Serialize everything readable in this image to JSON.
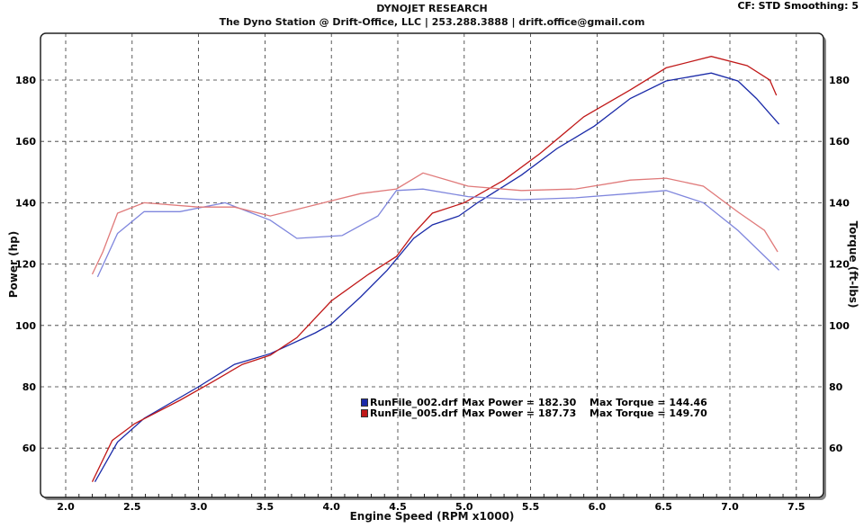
{
  "header": {
    "title": "DYNOJET RESEARCH",
    "subtitle": "The Dyno Station @ Drift-Office, LLC | 253.288.3888 | drift.office@gmail.com",
    "cf": "CF: STD  Smoothing: 5"
  },
  "chart_data": {
    "type": "line",
    "xlabel": "Engine Speed (RPM x1000)",
    "ylabel": "Power (hp)",
    "ylabel_right": "Torque (ft-lbs)",
    "xlim": [
      1.81,
      7.69
    ],
    "ylim": [
      47.7,
      195
    ],
    "xticks": [
      "2.0",
      "2.5",
      "3.0",
      "3.5",
      "4.0",
      "4.5",
      "5.0",
      "5.5",
      "6.0",
      "6.5",
      "7.0",
      "7.5"
    ],
    "yticks": [
      "60",
      "80",
      "100",
      "120",
      "140",
      "160",
      "180"
    ],
    "grid": true,
    "legend": [
      {
        "file": "RunFile_002.drf",
        "power": "Max Power = 182.30",
        "torque": "Max Torque = 144.46",
        "color": "#1a2aa8"
      },
      {
        "file": "RunFile_005.drf",
        "power": "Max Power = 187.73",
        "torque": "Max Torque = 149.70",
        "color": "#c01818"
      }
    ],
    "series": [
      {
        "name": "RunFile_002 Power",
        "color": "#1a2aa8",
        "x": [
          2.22,
          2.39,
          2.59,
          3.0,
          3.27,
          3.54,
          3.88,
          4.0,
          4.22,
          4.42,
          4.62,
          4.76,
          4.96,
          5.1,
          5.43,
          5.7,
          5.98,
          6.25,
          6.52,
          6.86,
          7.06,
          7.2,
          7.37
        ],
        "y": [
          49,
          62,
          69.7,
          80,
          87.3,
          90.8,
          97.6,
          100.5,
          109.3,
          118,
          128.4,
          132.8,
          135.7,
          140,
          149,
          157.7,
          165,
          174,
          179.7,
          182.3,
          179.7,
          174,
          165.6
        ]
      },
      {
        "name": "RunFile_005 Power",
        "color": "#c01818",
        "x": [
          2.2,
          2.35,
          2.52,
          2.86,
          3.1,
          3.33,
          3.54,
          3.74,
          4.0,
          4.28,
          4.49,
          4.62,
          4.76,
          5.0,
          5.3,
          5.57,
          5.9,
          6.25,
          6.52,
          6.86,
          7.13,
          7.3,
          7.35
        ],
        "y": [
          49,
          62.5,
          68,
          75.6,
          81.5,
          87.3,
          90.3,
          96,
          108,
          116.7,
          122.5,
          130,
          136.6,
          140,
          147.4,
          156,
          168,
          176.8,
          184,
          187.7,
          184.7,
          180,
          175
        ]
      },
      {
        "name": "RunFile_002 Torque",
        "color": "#7f86dd",
        "x": [
          2.24,
          2.39,
          2.59,
          2.86,
          3.2,
          3.54,
          3.74,
          4.08,
          4.35,
          4.49,
          4.69,
          5.03,
          5.43,
          5.84,
          6.25,
          6.52,
          6.8,
          7.06,
          7.37
        ],
        "y": [
          115.8,
          130,
          137.1,
          137.1,
          140,
          134.3,
          128.4,
          129.3,
          135.7,
          144,
          144.46,
          142,
          141,
          141.6,
          143,
          144,
          140,
          131,
          118
        ]
      },
      {
        "name": "RunFile_005 Torque",
        "color": "#e07a7a",
        "x": [
          2.2,
          2.28,
          2.39,
          2.59,
          3.0,
          3.27,
          3.54,
          3.81,
          4.22,
          4.49,
          4.69,
          5.03,
          5.43,
          5.84,
          6.25,
          6.52,
          6.8,
          7.06,
          7.26,
          7.36
        ],
        "y": [
          116.7,
          124,
          136.6,
          140,
          138.6,
          138.6,
          135.7,
          138.6,
          143,
          144.5,
          149.7,
          145.4,
          144,
          144.5,
          147.4,
          148,
          145.4,
          137,
          131,
          124
        ]
      }
    ]
  }
}
